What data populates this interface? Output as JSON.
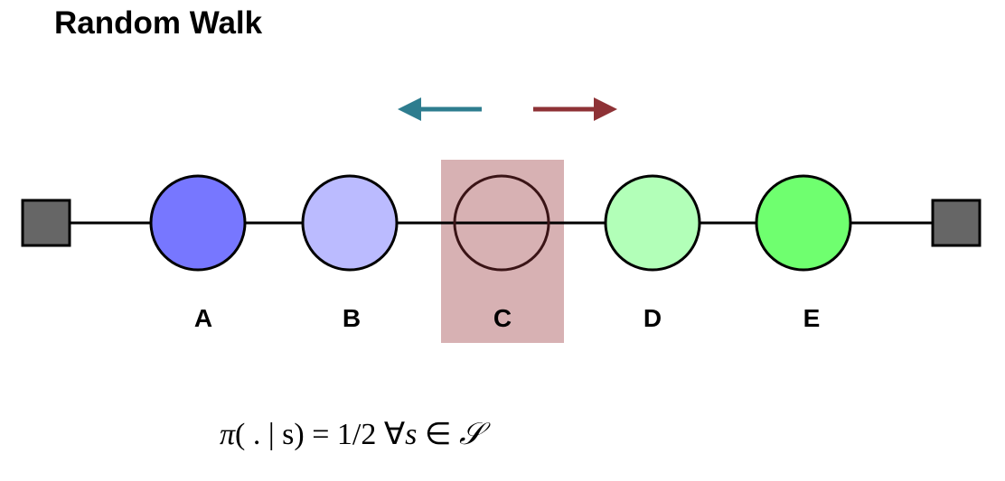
{
  "title": "Random Walk",
  "arrows": {
    "left": {
      "color": "#2e7d8f"
    },
    "right": {
      "color": "#8e3236"
    }
  },
  "highlight": {
    "state": "C",
    "color": "#d7b1b3"
  },
  "terminals": {
    "color": "#666666"
  },
  "states": [
    {
      "label": "A",
      "color": "#7777ff"
    },
    {
      "label": "B",
      "color": "#bbbbff"
    },
    {
      "label": "C",
      "color": "#d7b1b3"
    },
    {
      "label": "D",
      "color": "#b2ffb8"
    },
    {
      "label": "E",
      "color": "#6fff6f"
    }
  ],
  "formula": {
    "pi": "π",
    "args": "( . | s)",
    "equals": " = 1/2 ",
    "forall": " ∀",
    "var": "s",
    "in": " ∈ ",
    "set": "𝒮"
  }
}
